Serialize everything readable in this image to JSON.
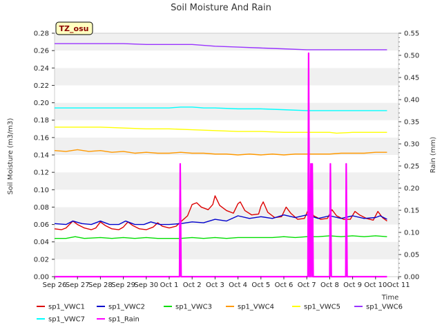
{
  "chart_data": {
    "type": "line",
    "title": "Soil Moisture And Rain",
    "badge": "TZ_osu",
    "xlabel": "Time",
    "ylabel_left": "Soil Moisture (m3/m3)",
    "ylabel_right": "Rain (mm)",
    "ylim_left": [
      0.0,
      0.28
    ],
    "ylim_right": [
      0.0,
      0.55
    ],
    "xlim": [
      0,
      15
    ],
    "grid": true,
    "legend_position": "bottom",
    "x_ticks": [
      {
        "v": 0,
        "label": "Sep 26"
      },
      {
        "v": 1,
        "label": "Sep 27"
      },
      {
        "v": 2,
        "label": "Sep 28"
      },
      {
        "v": 3,
        "label": "Sep 29"
      },
      {
        "v": 4,
        "label": "Sep 30"
      },
      {
        "v": 5,
        "label": "Oct 1"
      },
      {
        "v": 6,
        "label": "Oct 2"
      },
      {
        "v": 7,
        "label": "Oct 3"
      },
      {
        "v": 8,
        "label": "Oct 4"
      },
      {
        "v": 9,
        "label": "Oct 5"
      },
      {
        "v": 10,
        "label": "Oct 6"
      },
      {
        "v": 11,
        "label": "Oct 7"
      },
      {
        "v": 12,
        "label": "Oct 8"
      },
      {
        "v": 13,
        "label": "Oct 9"
      },
      {
        "v": 14,
        "label": "Oct 10"
      },
      {
        "v": 15,
        "label": "Oct 11"
      }
    ],
    "y_ticks_left": [
      {
        "v": 0.0,
        "label": "0.00"
      },
      {
        "v": 0.02,
        "label": "0.02"
      },
      {
        "v": 0.04,
        "label": "0.04"
      },
      {
        "v": 0.06,
        "label": "0.06"
      },
      {
        "v": 0.08,
        "label": "0.08"
      },
      {
        "v": 0.1,
        "label": "0.10"
      },
      {
        "v": 0.12,
        "label": "0.12"
      },
      {
        "v": 0.14,
        "label": "0.14"
      },
      {
        "v": 0.16,
        "label": "0.16"
      },
      {
        "v": 0.18,
        "label": "0.18"
      },
      {
        "v": 0.2,
        "label": "0.20"
      },
      {
        "v": 0.22,
        "label": "0.22"
      },
      {
        "v": 0.24,
        "label": "0.24"
      },
      {
        "v": 0.26,
        "label": "0.26"
      },
      {
        "v": 0.28,
        "label": "0.28"
      }
    ],
    "y_ticks_right": [
      {
        "v": 0.0,
        "label": "0.00"
      },
      {
        "v": 0.05,
        "label": "0.05"
      },
      {
        "v": 0.1,
        "label": "0.10"
      },
      {
        "v": 0.15,
        "label": "0.15"
      },
      {
        "v": 0.2,
        "label": "0.20"
      },
      {
        "v": 0.25,
        "label": "0.25"
      },
      {
        "v": 0.3,
        "label": "0.30"
      },
      {
        "v": 0.35,
        "label": "0.35"
      },
      {
        "v": 0.4,
        "label": "0.40"
      },
      {
        "v": 0.45,
        "label": "0.45"
      },
      {
        "v": 0.5,
        "label": "0.50"
      },
      {
        "v": 0.55,
        "label": "0.55"
      }
    ],
    "series": [
      {
        "name": "sp1_VWC1",
        "color": "#dd0000",
        "axis": "left",
        "points": [
          [
            0.0,
            0.055
          ],
          [
            0.3,
            0.054
          ],
          [
            0.5,
            0.056
          ],
          [
            0.8,
            0.064
          ],
          [
            1.0,
            0.06
          ],
          [
            1.3,
            0.056
          ],
          [
            1.6,
            0.054
          ],
          [
            1.8,
            0.056
          ],
          [
            2.0,
            0.063
          ],
          [
            2.2,
            0.059
          ],
          [
            2.5,
            0.055
          ],
          [
            2.8,
            0.054
          ],
          [
            3.0,
            0.057
          ],
          [
            3.2,
            0.063
          ],
          [
            3.4,
            0.059
          ],
          [
            3.7,
            0.055
          ],
          [
            4.0,
            0.054
          ],
          [
            4.3,
            0.057
          ],
          [
            4.5,
            0.062
          ],
          [
            4.7,
            0.058
          ],
          [
            5.0,
            0.056
          ],
          [
            5.3,
            0.058
          ],
          [
            5.5,
            0.063
          ],
          [
            5.8,
            0.07
          ],
          [
            6.0,
            0.083
          ],
          [
            6.2,
            0.085
          ],
          [
            6.4,
            0.08
          ],
          [
            6.7,
            0.077
          ],
          [
            6.9,
            0.083
          ],
          [
            7.0,
            0.093
          ],
          [
            7.2,
            0.082
          ],
          [
            7.5,
            0.076
          ],
          [
            7.8,
            0.073
          ],
          [
            8.0,
            0.084
          ],
          [
            8.1,
            0.086
          ],
          [
            8.3,
            0.076
          ],
          [
            8.6,
            0.071
          ],
          [
            8.9,
            0.072
          ],
          [
            9.0,
            0.081
          ],
          [
            9.1,
            0.086
          ],
          [
            9.3,
            0.074
          ],
          [
            9.6,
            0.068
          ],
          [
            9.9,
            0.069
          ],
          [
            10.1,
            0.08
          ],
          [
            10.3,
            0.073
          ],
          [
            10.6,
            0.066
          ],
          [
            10.9,
            0.067
          ],
          [
            11.1,
            0.079
          ],
          [
            11.3,
            0.07
          ],
          [
            11.6,
            0.066
          ],
          [
            11.9,
            0.067
          ],
          [
            12.1,
            0.077
          ],
          [
            12.3,
            0.07
          ],
          [
            12.6,
            0.066
          ],
          [
            12.9,
            0.066
          ],
          [
            13.1,
            0.075
          ],
          [
            13.3,
            0.071
          ],
          [
            13.6,
            0.067
          ],
          [
            13.9,
            0.065
          ],
          [
            14.1,
            0.075
          ],
          [
            14.3,
            0.068
          ],
          [
            14.5,
            0.064
          ]
        ]
      },
      {
        "name": "sp1_VWC2",
        "color": "#0000cc",
        "axis": "left",
        "points": [
          [
            0.0,
            0.061
          ],
          [
            0.5,
            0.06
          ],
          [
            0.8,
            0.064
          ],
          [
            1.2,
            0.061
          ],
          [
            1.6,
            0.06
          ],
          [
            2.0,
            0.064
          ],
          [
            2.4,
            0.06
          ],
          [
            2.8,
            0.06
          ],
          [
            3.1,
            0.064
          ],
          [
            3.5,
            0.06
          ],
          [
            3.9,
            0.06
          ],
          [
            4.2,
            0.063
          ],
          [
            4.6,
            0.06
          ],
          [
            5.0,
            0.06
          ],
          [
            5.5,
            0.061
          ],
          [
            6.0,
            0.063
          ],
          [
            6.5,
            0.062
          ],
          [
            7.0,
            0.066
          ],
          [
            7.5,
            0.064
          ],
          [
            8.0,
            0.07
          ],
          [
            8.5,
            0.067
          ],
          [
            9.0,
            0.069
          ],
          [
            9.5,
            0.067
          ],
          [
            10.0,
            0.071
          ],
          [
            10.5,
            0.068
          ],
          [
            11.0,
            0.071
          ],
          [
            11.5,
            0.067
          ],
          [
            12.0,
            0.07
          ],
          [
            12.5,
            0.067
          ],
          [
            13.0,
            0.07
          ],
          [
            13.5,
            0.067
          ],
          [
            14.0,
            0.068
          ],
          [
            14.2,
            0.07
          ],
          [
            14.5,
            0.066
          ]
        ]
      },
      {
        "name": "sp1_VWC3",
        "color": "#00dd00",
        "axis": "left",
        "points": [
          [
            0.0,
            0.044
          ],
          [
            0.5,
            0.044
          ],
          [
            0.9,
            0.046
          ],
          [
            1.3,
            0.044
          ],
          [
            2.0,
            0.045
          ],
          [
            2.5,
            0.044
          ],
          [
            3.0,
            0.045
          ],
          [
            3.5,
            0.044
          ],
          [
            4.0,
            0.045
          ],
          [
            4.5,
            0.044
          ],
          [
            5.0,
            0.044
          ],
          [
            5.5,
            0.044
          ],
          [
            6.0,
            0.045
          ],
          [
            6.5,
            0.044
          ],
          [
            7.0,
            0.045
          ],
          [
            7.5,
            0.044
          ],
          [
            8.0,
            0.045
          ],
          [
            8.5,
            0.045
          ],
          [
            9.0,
            0.045
          ],
          [
            9.5,
            0.045
          ],
          [
            10.0,
            0.046
          ],
          [
            10.5,
            0.045
          ],
          [
            11.0,
            0.046
          ],
          [
            11.5,
            0.046
          ],
          [
            12.0,
            0.047
          ],
          [
            12.5,
            0.046
          ],
          [
            13.0,
            0.047
          ],
          [
            13.5,
            0.046
          ],
          [
            14.0,
            0.047
          ],
          [
            14.5,
            0.046
          ]
        ]
      },
      {
        "name": "sp1_VWC4",
        "color": "#ff9900",
        "axis": "left",
        "points": [
          [
            0.0,
            0.145
          ],
          [
            0.5,
            0.144
          ],
          [
            1.0,
            0.146
          ],
          [
            1.5,
            0.144
          ],
          [
            2.0,
            0.145
          ],
          [
            2.5,
            0.143
          ],
          [
            3.0,
            0.144
          ],
          [
            3.5,
            0.142
          ],
          [
            4.0,
            0.143
          ],
          [
            4.5,
            0.142
          ],
          [
            5.0,
            0.142
          ],
          [
            5.5,
            0.143
          ],
          [
            6.0,
            0.142
          ],
          [
            6.5,
            0.142
          ],
          [
            7.0,
            0.141
          ],
          [
            7.5,
            0.141
          ],
          [
            8.0,
            0.14
          ],
          [
            8.5,
            0.141
          ],
          [
            9.0,
            0.14
          ],
          [
            9.5,
            0.141
          ],
          [
            10.0,
            0.14
          ],
          [
            10.5,
            0.141
          ],
          [
            11.0,
            0.141
          ],
          [
            11.5,
            0.141
          ],
          [
            12.0,
            0.141
          ],
          [
            12.5,
            0.142
          ],
          [
            13.0,
            0.142
          ],
          [
            13.5,
            0.142
          ],
          [
            14.0,
            0.143
          ],
          [
            14.5,
            0.143
          ]
        ]
      },
      {
        "name": "sp1_VWC5",
        "color": "#ffff00",
        "axis": "left",
        "points": [
          [
            0.0,
            0.172
          ],
          [
            1.0,
            0.172
          ],
          [
            2.0,
            0.172
          ],
          [
            3.0,
            0.171
          ],
          [
            4.0,
            0.17
          ],
          [
            5.0,
            0.17
          ],
          [
            6.0,
            0.169
          ],
          [
            7.0,
            0.168
          ],
          [
            8.0,
            0.167
          ],
          [
            9.0,
            0.167
          ],
          [
            10.0,
            0.166
          ],
          [
            11.0,
            0.166
          ],
          [
            12.0,
            0.166
          ],
          [
            12.3,
            0.165
          ],
          [
            13.0,
            0.166
          ],
          [
            14.0,
            0.166
          ],
          [
            14.5,
            0.166
          ]
        ]
      },
      {
        "name": "sp1_VWC6",
        "color": "#9933ff",
        "axis": "left",
        "points": [
          [
            0.0,
            0.268
          ],
          [
            1.0,
            0.268
          ],
          [
            2.0,
            0.268
          ],
          [
            3.0,
            0.268
          ],
          [
            4.0,
            0.267
          ],
          [
            5.0,
            0.267
          ],
          [
            6.0,
            0.267
          ],
          [
            6.5,
            0.266
          ],
          [
            7.0,
            0.265
          ],
          [
            8.0,
            0.264
          ],
          [
            9.0,
            0.263
          ],
          [
            10.0,
            0.262
          ],
          [
            11.0,
            0.261
          ],
          [
            12.0,
            0.261
          ],
          [
            13.0,
            0.261
          ],
          [
            14.0,
            0.261
          ],
          [
            14.5,
            0.261
          ]
        ]
      },
      {
        "name": "sp1_VWC7",
        "color": "#00ffff",
        "axis": "left",
        "points": [
          [
            0.0,
            0.194
          ],
          [
            1.0,
            0.194
          ],
          [
            2.0,
            0.194
          ],
          [
            3.0,
            0.194
          ],
          [
            4.0,
            0.194
          ],
          [
            5.0,
            0.194
          ],
          [
            5.5,
            0.195
          ],
          [
            6.0,
            0.195
          ],
          [
            6.5,
            0.194
          ],
          [
            7.0,
            0.194
          ],
          [
            8.0,
            0.193
          ],
          [
            9.0,
            0.193
          ],
          [
            10.0,
            0.192
          ],
          [
            11.0,
            0.191
          ],
          [
            12.0,
            0.191
          ],
          [
            13.0,
            0.191
          ],
          [
            14.0,
            0.191
          ],
          [
            14.5,
            0.191
          ]
        ]
      },
      {
        "name": "sp1_Rain",
        "color": "#ff00ff",
        "axis": "right",
        "points": [
          [
            0.0,
            0.0
          ],
          [
            5.4,
            0.0
          ],
          [
            5.45,
            0.0
          ],
          [
            5.48,
            0.255
          ],
          [
            5.52,
            0.0
          ],
          [
            11.0,
            0.0
          ],
          [
            11.05,
            0.0
          ],
          [
            11.08,
            0.505
          ],
          [
            11.12,
            0.0
          ],
          [
            11.15,
            0.0
          ],
          [
            11.18,
            0.255
          ],
          [
            11.22,
            0.0
          ],
          [
            11.24,
            0.255
          ],
          [
            11.28,
            0.0
          ],
          [
            12.0,
            0.0
          ],
          [
            12.03,
            0.255
          ],
          [
            12.07,
            0.0
          ],
          [
            12.7,
            0.0
          ],
          [
            12.72,
            0.255
          ],
          [
            12.76,
            0.0
          ],
          [
            14.5,
            0.0
          ]
        ]
      }
    ]
  }
}
